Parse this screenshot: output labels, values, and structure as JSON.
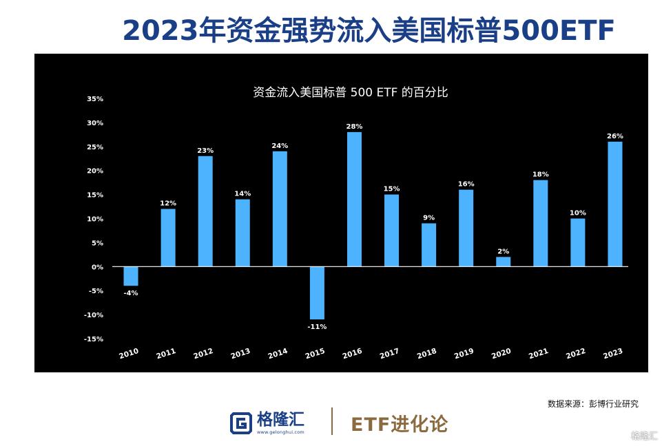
{
  "headline": "2023年资金强势流入美国标普500ETF",
  "source_note": "数据来源：彭博行业研究",
  "footer": {
    "logo_text": "格隆汇",
    "logo_url": "www.gelonghui.com",
    "brand": "ETF进化论"
  },
  "watermark": {
    "text": "格隆汇"
  },
  "colors": {
    "bar": "#4db3ff",
    "panel": "#000000",
    "headline": "#1a3f86",
    "brand": "#8a6a3e"
  },
  "chart_data": {
    "type": "bar",
    "title": "资金流入美国标普 500 ETF 的百分比",
    "xlabel": "",
    "ylabel": "",
    "categories": [
      "2010",
      "2011",
      "2012",
      "2013",
      "2014",
      "2015",
      "2016",
      "2017",
      "2018",
      "2019",
      "2020",
      "2021",
      "2022",
      "2023"
    ],
    "values": [
      -4,
      12,
      23,
      14,
      24,
      -11,
      28,
      15,
      9,
      16,
      2,
      18,
      10,
      26
    ],
    "value_labels": [
      "-4%",
      "12%",
      "23%",
      "14%",
      "24%",
      "-11%",
      "28%",
      "15%",
      "9%",
      "16%",
      "2%",
      "18%",
      "10%",
      "26%"
    ],
    "ylim": [
      -15,
      35
    ],
    "yticks": [
      35,
      30,
      25,
      20,
      15,
      10,
      5,
      0,
      -5,
      -10,
      -15
    ],
    "ytick_labels": [
      "35%",
      "30%",
      "25%",
      "20%",
      "15%",
      "10%",
      "5%",
      "0%",
      "-5%",
      "-10%",
      "-15%"
    ],
    "grid": false,
    "legend": "none"
  }
}
